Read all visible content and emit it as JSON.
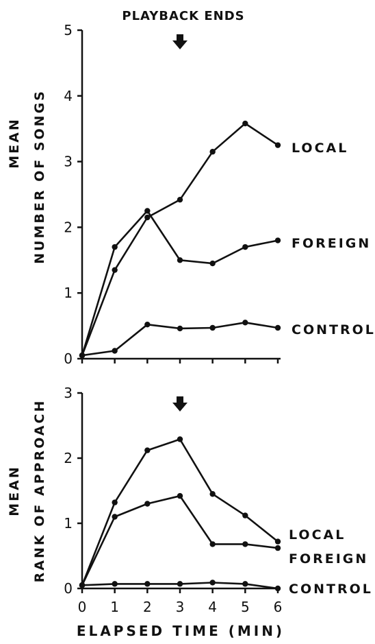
{
  "chart_data": [
    {
      "type": "line",
      "annotation": "PLAYBACK ENDS",
      "ylabel": [
        "MEAN",
        "NUMBER OF SONGS"
      ],
      "x": [
        0,
        1,
        2,
        3,
        4,
        5,
        6
      ],
      "xlim": [
        0,
        6
      ],
      "ylim": [
        0,
        5
      ],
      "yticks": [
        0,
        1,
        2,
        3,
        4,
        5
      ],
      "arrow_at_x": 3,
      "series": [
        {
          "name": "LOCAL",
          "values": [
            0.05,
            1.35,
            2.15,
            2.42,
            3.15,
            3.58,
            3.25
          ]
        },
        {
          "name": "FOREIGN",
          "values": [
            0.05,
            1.7,
            2.25,
            1.5,
            1.45,
            1.7,
            1.8
          ]
        },
        {
          "name": "CONTROL",
          "values": [
            0.05,
            0.12,
            0.52,
            0.46,
            0.47,
            0.55,
            0.47
          ]
        }
      ]
    },
    {
      "type": "line",
      "ylabel": [
        "MEAN",
        "RANK OF APPROACH"
      ],
      "xlabel": "ELAPSED TIME (MIN)",
      "x": [
        0,
        1,
        2,
        3,
        4,
        5,
        6
      ],
      "xticks": [
        0,
        1,
        2,
        3,
        4,
        5,
        6
      ],
      "xlim": [
        0,
        6
      ],
      "ylim": [
        0,
        3
      ],
      "yticks": [
        0,
        1,
        2,
        3
      ],
      "arrow_at_x": 3,
      "series": [
        {
          "name": "LOCAL",
          "values": [
            0.05,
            1.32,
            2.12,
            2.29,
            1.45,
            1.12,
            0.72
          ]
        },
        {
          "name": "FOREIGN",
          "values": [
            0.05,
            1.1,
            1.3,
            1.42,
            0.68,
            0.68,
            0.62
          ]
        },
        {
          "name": "CONTROL",
          "values": [
            0.05,
            0.07,
            0.07,
            0.07,
            0.09,
            0.07,
            0.0
          ]
        }
      ]
    }
  ]
}
